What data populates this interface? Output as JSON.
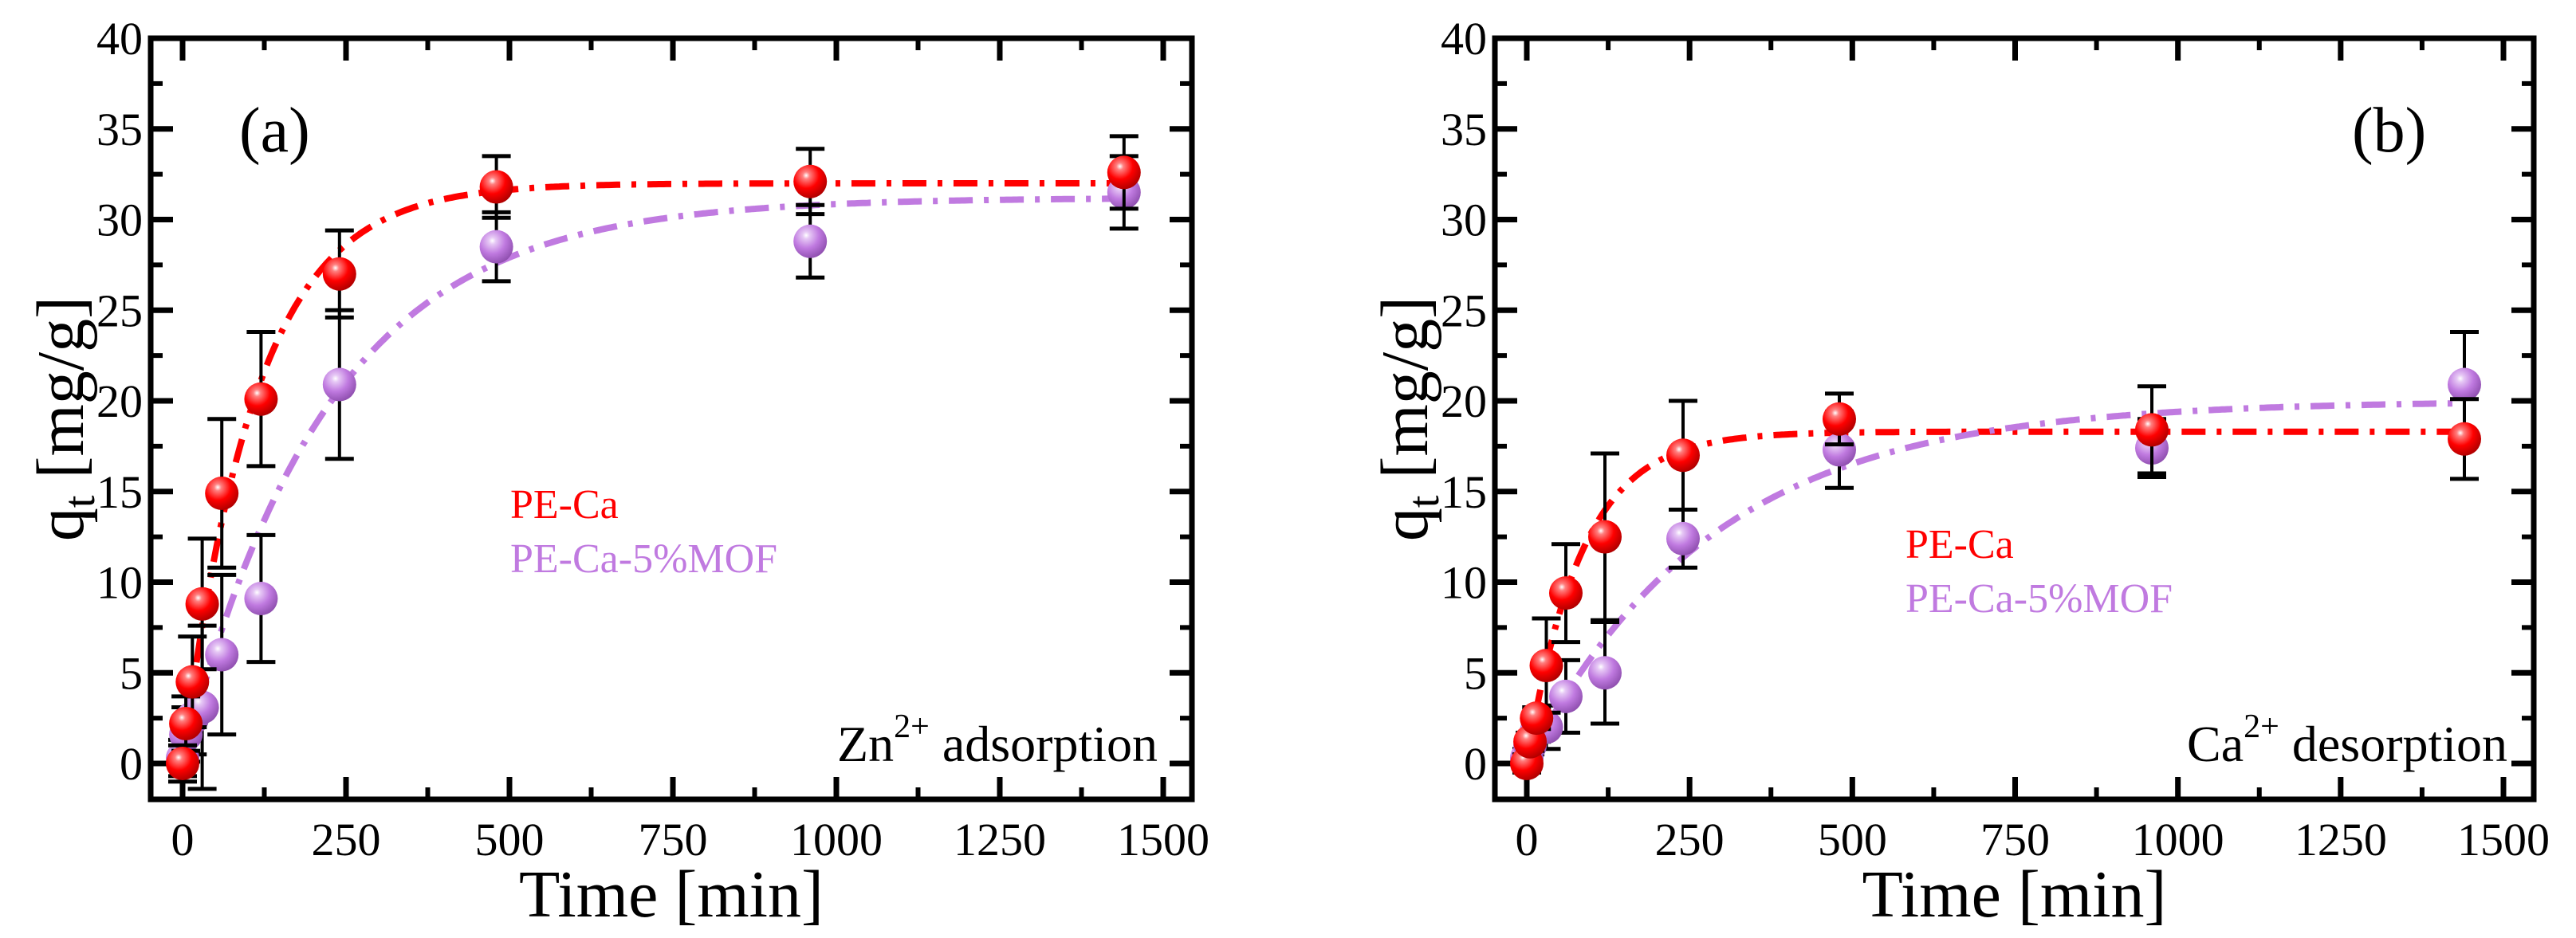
{
  "chart_data": [
    {
      "type": "scatter",
      "panel_label": "(a)",
      "annotation": {
        "base": "Zn",
        "sup": "2+",
        "rest": " adsorption"
      },
      "xlabel": "Time [min]",
      "ylabel": {
        "base": "q",
        "sub": "t",
        "rest": " [mg/g]"
      },
      "xlim": [
        -50,
        1550
      ],
      "ylim": [
        -2,
        40
      ],
      "xticks": [
        0,
        250,
        500,
        750,
        1000,
        1250,
        1500
      ],
      "yticks": [
        0,
        5,
        10,
        15,
        20,
        25,
        30,
        35,
        40
      ],
      "legend_position": "center",
      "x": [
        0,
        5,
        15,
        30,
        60,
        120,
        240,
        480,
        960,
        1440
      ],
      "series": [
        {
          "name": "PE-Ca",
          "color": "#ff0000",
          "values": [
            0,
            2.2,
            4.5,
            8.8,
            14.9,
            20.1,
            27.0,
            31.8,
            32.1,
            32.6
          ],
          "errors": [
            1.0,
            1.5,
            2.5,
            3.6,
            4.1,
            3.7,
            2.4,
            1.7,
            1.8,
            2.0
          ],
          "fit": {
            "model": "pseudo-first-order",
            "qe": 32.0,
            "k": 0.009
          }
        },
        {
          "name": "PE-Ca-5%MOF",
          "color": "#c07ae0",
          "values": [
            0.3,
            1.6,
            2.5,
            3.1,
            6.0,
            9.1,
            20.9,
            28.5,
            28.8,
            31.5
          ],
          "errors": [
            1.0,
            1.5,
            2.0,
            4.5,
            4.4,
            3.5,
            4.1,
            1.9,
            2.0,
            2.0
          ],
          "fit": {
            "model": "pseudo-first-order",
            "qe": 31.2,
            "k": 0.0045
          }
        }
      ]
    },
    {
      "type": "scatter",
      "panel_label": "(b)",
      "annotation": {
        "base": "Ca",
        "sup": "2+",
        "rest": " desorption"
      },
      "xlabel": "Time [min]",
      "ylabel": {
        "base": "q",
        "sub": "t",
        "rest": " [mg/g]"
      },
      "xlim": [
        -50,
        1550
      ],
      "ylim": [
        -2,
        40
      ],
      "xticks": [
        0,
        250,
        500,
        750,
        1000,
        1250,
        1500
      ],
      "yticks": [
        0,
        5,
        10,
        15,
        20,
        25,
        30,
        35,
        40
      ],
      "legend_position": "center",
      "x": [
        0,
        5,
        15,
        30,
        60,
        120,
        240,
        480,
        960,
        1440
      ],
      "series": [
        {
          "name": "PE-Ca",
          "color": "#ff0000",
          "values": [
            0,
            1.2,
            2.5,
            5.4,
            9.4,
            12.5,
            17.0,
            19.0,
            18.4,
            17.9
          ],
          "errors": [
            0.5,
            0.5,
            0.6,
            2.6,
            2.7,
            4.6,
            3.0,
            1.4,
            2.4,
            2.2
          ],
          "fit": {
            "model": "pseudo-first-order",
            "qe": 18.3,
            "k": 0.012
          }
        },
        {
          "name": "PE-Ca-5%MOF",
          "color": "#c07ae0",
          "values": [
            0.3,
            1.0,
            1.8,
            2.0,
            3.7,
            5.0,
            12.4,
            17.3,
            17.4,
            20.9
          ],
          "errors": [
            0.5,
            0.5,
            0.6,
            1.2,
            2.0,
            2.8,
            1.6,
            2.1,
            1.6,
            2.9
          ],
          "fit": {
            "model": "pseudo-first-order",
            "qe": 20.0,
            "k": 0.0035
          }
        }
      ]
    }
  ]
}
